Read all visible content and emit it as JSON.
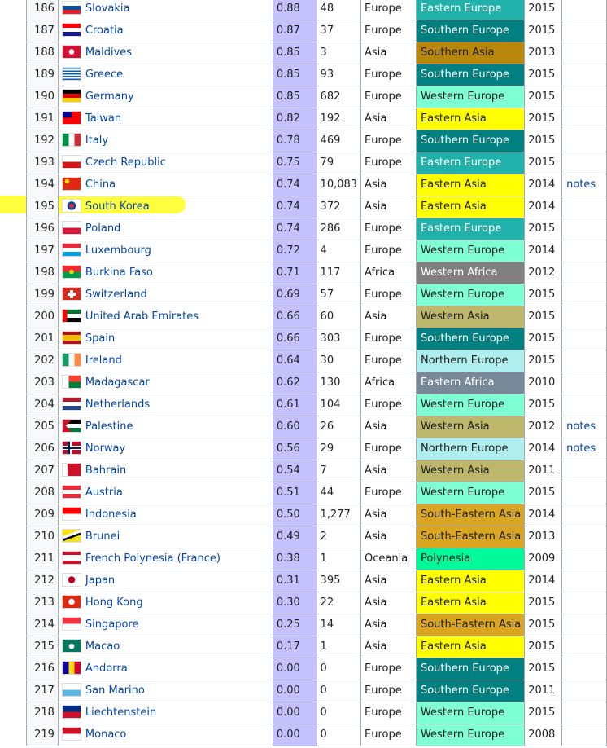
{
  "region_colors": {
    "Eastern Europe": "#20b2aa",
    "Southern Europe": "#008080",
    "Western Europe": "#7fffd4",
    "Northern Europe": "#afeeee",
    "Southern Asia": "#b8860b",
    "Eastern Asia": "#ffff00",
    "Western Asia": "#bdb76b",
    "South-Eastern Asia": "#daa520",
    "Western Africa": "#808080",
    "Eastern Africa": "#778899",
    "Polynesia": "#00fa9a"
  },
  "region_text_colors": {
    "Eastern Europe": "#ffffff",
    "Southern Europe": "#ffffff",
    "Western Africa": "#ffffff",
    "Eastern Africa": "#ffffff"
  },
  "rows": [
    {
      "rank": "186",
      "country": "Slovakia",
      "flag": "slovakia-flag",
      "rate": "0.88",
      "count": "48",
      "continent": "Europe",
      "region": "Eastern Europe",
      "year": "2015",
      "notes": ""
    },
    {
      "rank": "187",
      "country": "Croatia",
      "flag": "croatia-flag",
      "rate": "0.87",
      "count": "37",
      "continent": "Europe",
      "region": "Southern Europe",
      "year": "2015",
      "notes": ""
    },
    {
      "rank": "188",
      "country": "Maldives",
      "flag": "maldives-flag",
      "rate": "0.85",
      "count": "3",
      "continent": "Asia",
      "region": "Southern Asia",
      "year": "2013",
      "notes": ""
    },
    {
      "rank": "189",
      "country": "Greece",
      "flag": "greece-flag",
      "rate": "0.85",
      "count": "93",
      "continent": "Europe",
      "region": "Southern Europe",
      "year": "2015",
      "notes": ""
    },
    {
      "rank": "190",
      "country": "Germany",
      "flag": "germany-flag",
      "rate": "0.85",
      "count": "682",
      "continent": "Europe",
      "region": "Western Europe",
      "year": "2015",
      "notes": ""
    },
    {
      "rank": "191",
      "country": "Taiwan",
      "flag": "taiwan-flag",
      "rate": "0.82",
      "count": "192",
      "continent": "Asia",
      "region": "Eastern Asia",
      "year": "2015",
      "notes": ""
    },
    {
      "rank": "192",
      "country": "Italy",
      "flag": "italy-flag",
      "rate": "0.78",
      "count": "469",
      "continent": "Europe",
      "region": "Southern Europe",
      "year": "2015",
      "notes": ""
    },
    {
      "rank": "193",
      "country": "Czech Republic",
      "flag": "czech-flag",
      "rate": "0.75",
      "count": "79",
      "continent": "Europe",
      "region": "Eastern Europe",
      "year": "2015",
      "notes": ""
    },
    {
      "rank": "194",
      "country": "China",
      "flag": "china-flag",
      "rate": "0.74",
      "count": "10,083",
      "continent": "Asia",
      "region": "Eastern Asia",
      "year": "2014",
      "notes": "notes"
    },
    {
      "rank": "195",
      "country": "South Korea",
      "flag": "south-korea-flag",
      "rate": "0.74",
      "count": "372",
      "continent": "Asia",
      "region": "Eastern Asia",
      "year": "2014",
      "notes": ""
    },
    {
      "rank": "196",
      "country": "Poland",
      "flag": "poland-flag",
      "rate": "0.74",
      "count": "286",
      "continent": "Europe",
      "region": "Eastern Europe",
      "year": "2015",
      "notes": ""
    },
    {
      "rank": "197",
      "country": "Luxembourg",
      "flag": "luxembourg-flag",
      "rate": "0.72",
      "count": "4",
      "continent": "Europe",
      "region": "Western Europe",
      "year": "2014",
      "notes": ""
    },
    {
      "rank": "198",
      "country": "Burkina Faso",
      "flag": "burkina-faso-flag",
      "rate": "0.71",
      "count": "117",
      "continent": "Africa",
      "region": "Western Africa",
      "year": "2012",
      "notes": ""
    },
    {
      "rank": "199",
      "country": "Switzerland",
      "flag": "switzerland-flag",
      "rate": "0.69",
      "count": "57",
      "continent": "Europe",
      "region": "Western Europe",
      "year": "2015",
      "notes": ""
    },
    {
      "rank": "200",
      "country": "United Arab Emirates",
      "flag": "uae-flag",
      "rate": "0.66",
      "count": "60",
      "continent": "Asia",
      "region": "Western Asia",
      "year": "2015",
      "notes": ""
    },
    {
      "rank": "201",
      "country": "Spain",
      "flag": "spain-flag",
      "rate": "0.66",
      "count": "303",
      "continent": "Europe",
      "region": "Southern Europe",
      "year": "2015",
      "notes": ""
    },
    {
      "rank": "202",
      "country": "Ireland",
      "flag": "ireland-flag",
      "rate": "0.64",
      "count": "30",
      "continent": "Europe",
      "region": "Northern Europe",
      "year": "2015",
      "notes": ""
    },
    {
      "rank": "203",
      "country": "Madagascar",
      "flag": "madagascar-flag",
      "rate": "0.62",
      "count": "130",
      "continent": "Africa",
      "region": "Eastern Africa",
      "year": "2010",
      "notes": ""
    },
    {
      "rank": "204",
      "country": "Netherlands",
      "flag": "netherlands-flag",
      "rate": "0.61",
      "count": "104",
      "continent": "Europe",
      "region": "Western Europe",
      "year": "2015",
      "notes": ""
    },
    {
      "rank": "205",
      "country": "Palestine",
      "flag": "palestine-flag",
      "rate": "0.60",
      "count": "26",
      "continent": "Asia",
      "region": "Western Asia",
      "year": "2012",
      "notes": "notes"
    },
    {
      "rank": "206",
      "country": "Norway",
      "flag": "norway-flag",
      "rate": "0.56",
      "count": "29",
      "continent": "Europe",
      "region": "Northern Europe",
      "year": "2014",
      "notes": "notes"
    },
    {
      "rank": "207",
      "country": "Bahrain",
      "flag": "bahrain-flag",
      "rate": "0.54",
      "count": "7",
      "continent": "Asia",
      "region": "Western Asia",
      "year": "2011",
      "notes": ""
    },
    {
      "rank": "208",
      "country": "Austria",
      "flag": "austria-flag",
      "rate": "0.51",
      "count": "44",
      "continent": "Europe",
      "region": "Western Europe",
      "year": "2015",
      "notes": ""
    },
    {
      "rank": "209",
      "country": "Indonesia",
      "flag": "indonesia-flag",
      "rate": "0.50",
      "count": "1,277",
      "continent": "Asia",
      "region": "South-Eastern Asia",
      "year": "2014",
      "notes": ""
    },
    {
      "rank": "210",
      "country": "Brunei",
      "flag": "brunei-flag",
      "rate": "0.49",
      "count": "2",
      "continent": "Asia",
      "region": "South-Eastern Asia",
      "year": "2013",
      "notes": ""
    },
    {
      "rank": "211",
      "country": "French Polynesia (France)",
      "flag": "french-polynesia-flag",
      "rate": "0.38",
      "count": "1",
      "continent": "Oceania",
      "region": "Polynesia",
      "year": "2009",
      "notes": ""
    },
    {
      "rank": "212",
      "country": "Japan",
      "flag": "japan-flag",
      "rate": "0.31",
      "count": "395",
      "continent": "Asia",
      "region": "Eastern Asia",
      "year": "2014",
      "notes": ""
    },
    {
      "rank": "213",
      "country": "Hong Kong",
      "flag": "hong-kong-flag",
      "rate": "0.30",
      "count": "22",
      "continent": "Asia",
      "region": "Eastern Asia",
      "year": "2015",
      "notes": ""
    },
    {
      "rank": "214",
      "country": "Singapore",
      "flag": "singapore-flag",
      "rate": "0.25",
      "count": "14",
      "continent": "Asia",
      "region": "South-Eastern Asia",
      "year": "2015",
      "notes": ""
    },
    {
      "rank": "215",
      "country": "Macao",
      "flag": "macao-flag",
      "rate": "0.17",
      "count": "1",
      "continent": "Asia",
      "region": "Eastern Asia",
      "year": "2015",
      "notes": ""
    },
    {
      "rank": "216",
      "country": "Andorra",
      "flag": "andorra-flag",
      "rate": "0.00",
      "count": "0",
      "continent": "Europe",
      "region": "Southern Europe",
      "year": "2015",
      "notes": ""
    },
    {
      "rank": "217",
      "country": "San Marino",
      "flag": "san-marino-flag",
      "rate": "0.00",
      "count": "0",
      "continent": "Europe",
      "region": "Southern Europe",
      "year": "2011",
      "notes": ""
    },
    {
      "rank": "218",
      "country": "Liechtenstein",
      "flag": "liechtenstein-flag",
      "rate": "0.00",
      "count": "0",
      "continent": "Europe",
      "region": "Western Europe",
      "year": "2015",
      "notes": ""
    },
    {
      "rank": "219",
      "country": "Monaco",
      "flag": "monaco-flag",
      "rate": "0.00",
      "count": "0",
      "continent": "Europe",
      "region": "Western Europe",
      "year": "2008",
      "notes": ""
    }
  ],
  "highlight": {
    "rank": "195",
    "color": "#ffff00"
  }
}
